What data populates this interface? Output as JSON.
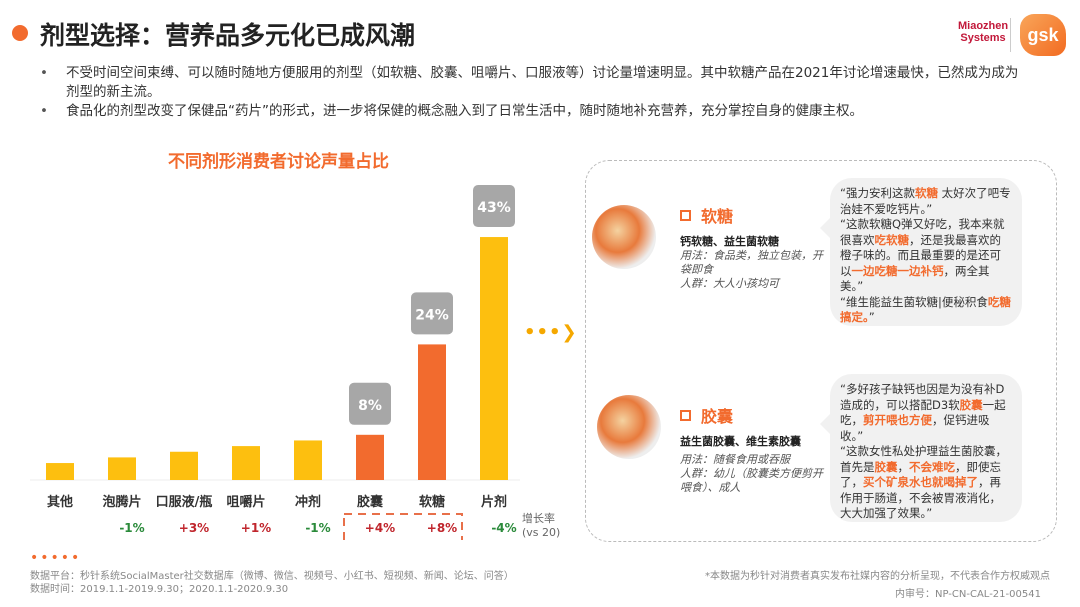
{
  "header": {
    "title": "剂型选择：营养品多元化已成风潮",
    "logo_left": "Miaozhen Systems",
    "logo_right": "gsk"
  },
  "bullets": [
    "不受时间空间束缚、可以随时随地方便服用的剂型（如软糖、胶囊、咀嚼片、口服液等）讨论量增速明显。其中软糖产品在2021年讨论增速最快，已然成为成为剂型的新主流。",
    "食品化的剂型改变了保健品“药片”的形式，进一步将保健的概念融入到了日常生活中，随时随地补充营养，充分掌控自身的健康主权。"
  ],
  "chart_data": {
    "type": "bar",
    "title": "不同剂形消费者讨论声量占比",
    "categories": [
      "其他",
      "泡腾片",
      "口服液/瓶",
      "咀嚼片",
      "冲剂",
      "胶囊",
      "软糖",
      "片剂"
    ],
    "values": [
      3,
      4,
      5,
      6,
      7,
      8,
      24,
      43
    ],
    "value_labels": [
      "",
      "",
      "",
      "",
      "",
      "8%",
      "24%",
      "43%"
    ],
    "highlight_color": "#f26b2e",
    "base_color": "#fdbf0f",
    "highlighted": [
      "胶囊",
      "软糖"
    ],
    "growth_label": "增长率",
    "growth_label2": "(vs 20)",
    "growth": [
      "",
      "-1%",
      "+3%",
      "+1%",
      "-1%",
      "+4%",
      "+8%",
      "-4%"
    ],
    "growth_colors": {
      "positive": "#c0262d",
      "negative": "#2a8a3a"
    }
  },
  "panel": {
    "softcandy": {
      "title": "软糖",
      "types": "钙软糖、益生菌软糖",
      "usage": "用法：食品类，独立包装，开袋即食",
      "crowd": "人群：大人小孩均可",
      "quote": [
        [
          "“强力安利这款",
          0
        ],
        [
          "软糖",
          1
        ],
        [
          " 太好次了吧专治娃不爱吃钙片。”\n“这款软糖Q弹又好吃，我本来就很喜欢",
          0
        ],
        [
          "吃软糖",
          1
        ],
        [
          "，还是我最喜欢的橙子味的。而且最重要的是还可以",
          0
        ],
        [
          "一边吃糖一边补钙",
          1
        ],
        [
          "，两全其美。”\n“维生能益生菌软糖|便秘积食",
          0
        ],
        [
          "吃糖搞定。",
          1
        ],
        [
          "”",
          0
        ]
      ]
    },
    "capsule": {
      "title": "胶囊",
      "types": "益生菌胶囊、维生素胶囊",
      "usage": "用法：随餐食用或吞服",
      "crowd": "人群：幼儿（胶囊类方便剪开喂食）、成人",
      "quote": [
        [
          "“多好孩子缺钙也因是为没有补D造成的，可以搭配D3软",
          0
        ],
        [
          "胶囊",
          1
        ],
        [
          "一起吃，",
          0
        ],
        [
          "剪开喂也方便",
          1
        ],
        [
          "，促钙进吸收。”\n“这款女性私处护理益生菌胶囊，首先是",
          0
        ],
        [
          "胶囊",
          1
        ],
        [
          "，",
          0
        ],
        [
          "不会难吃",
          1
        ],
        [
          "，即使忘了，",
          0
        ],
        [
          "买个矿泉水也就喝掉了",
          1
        ],
        [
          "，再作用于肠道，不会被胃液消化，大大加强了效果。”",
          0
        ]
      ]
    }
  },
  "footer": {
    "source": "数据平台：秒针系统SocialMaster社交数据库（微博、微信、视频号、小红书、短视频、新闻、论坛、问答）",
    "period": "数据时间：2019.1.1-2019.9.30；2020.1.1-2020.9.30",
    "disclaimer": "*本数据为秒针对消费者真实发布社媒内容的分析呈现，不代表合作方权威观点",
    "code": "内审号：NP-CN-CAL-21-00541"
  }
}
